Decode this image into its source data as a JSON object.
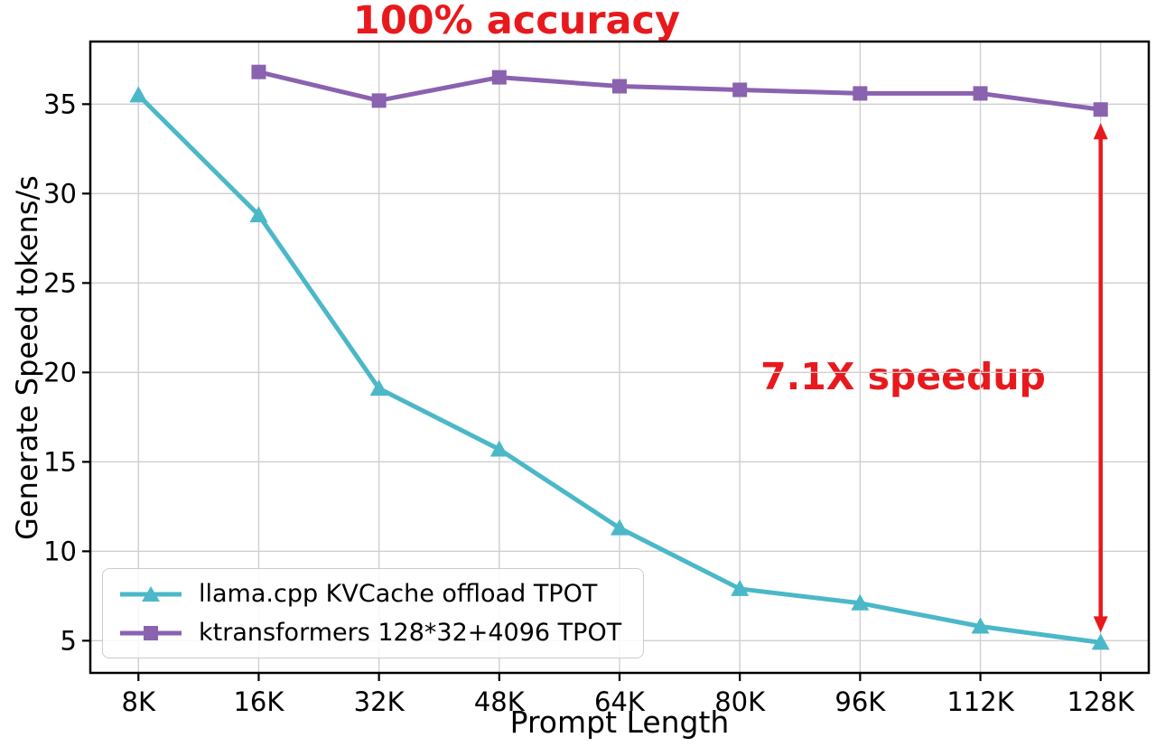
{
  "annotations": {
    "accuracy_label": "100% accuracy",
    "speedup_label": "7.1X speedup"
  },
  "chart_data": {
    "type": "line",
    "title": "100% accuracy",
    "xlabel": "Prompt Length",
    "ylabel": "Generate Speed tokens/s",
    "categories": [
      "8K",
      "16K",
      "32K",
      "48K",
      "64K",
      "80K",
      "96K",
      "112K",
      "128K"
    ],
    "yticks": [
      5,
      10,
      15,
      20,
      25,
      30,
      35
    ],
    "ylim": [
      3.2,
      38.5
    ],
    "grid": true,
    "legend_position": "lower left",
    "series": [
      {
        "name": "llama.cpp KVCache offload TPOT",
        "color": "#4bb8c8",
        "marker": "triangle",
        "values": [
          35.5,
          28.8,
          19.1,
          15.7,
          11.3,
          7.9,
          7.1,
          5.8,
          4.9
        ]
      },
      {
        "name": "ktransformers 128*32+4096 TPOT",
        "color": "#8a62b0",
        "marker": "square",
        "values": [
          null,
          36.8,
          35.2,
          36.5,
          36.0,
          35.8,
          35.6,
          35.6,
          34.7
        ]
      }
    ],
    "annotation_arrow": {
      "x_category": "128K",
      "from": 34.7,
      "to": 4.9,
      "color": "#e8191d",
      "label": "7.1X speedup"
    },
    "colors": {
      "accent_red": "#e8191d",
      "grid": "#cfcfcf",
      "frame": "#000000"
    }
  }
}
